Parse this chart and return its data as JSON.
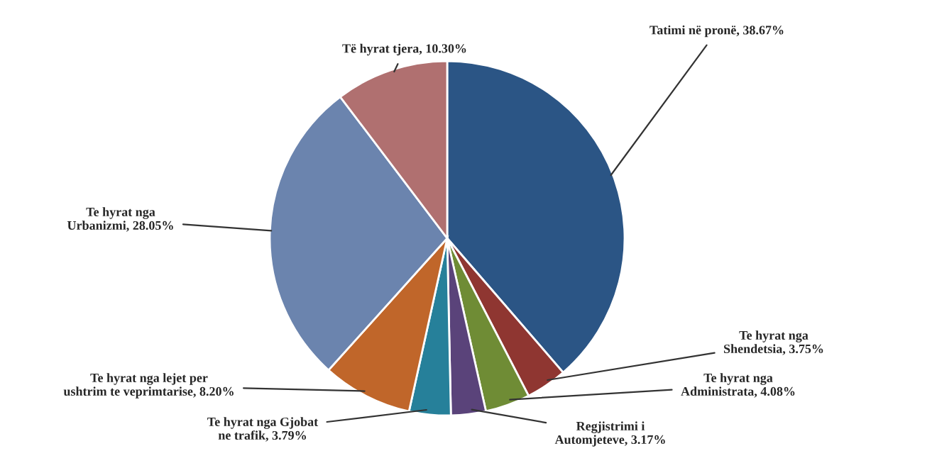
{
  "chart_data": {
    "type": "pie",
    "categories": [
      "Tatimi në pronë",
      "Te hyrat nga Shendetsia",
      "Te hyrat nga Administrata",
      "Regjistrimi i Automjeteve",
      "Te hyrat nga Gjobat ne trafik",
      "Te hyrat nga lejet per ushtrim te veprimtarise",
      "Te hyrat nga Urbanizmi",
      "Të hyrat tjera"
    ],
    "values": [
      38.67,
      3.75,
      4.08,
      3.17,
      3.79,
      8.2,
      28.05,
      10.3
    ],
    "value_labels": [
      "38.67%",
      "3.75%",
      "4.08%",
      "3.17%",
      "3.79%",
      "8.20%",
      "28.05%",
      "10.30%"
    ],
    "colors": [
      "#2b5585",
      "#8f3631",
      "#6f8c35",
      "#5a437a",
      "#26809a",
      "#c0662a",
      "#6b84ae",
      "#b07070"
    ],
    "legend": false
  }
}
